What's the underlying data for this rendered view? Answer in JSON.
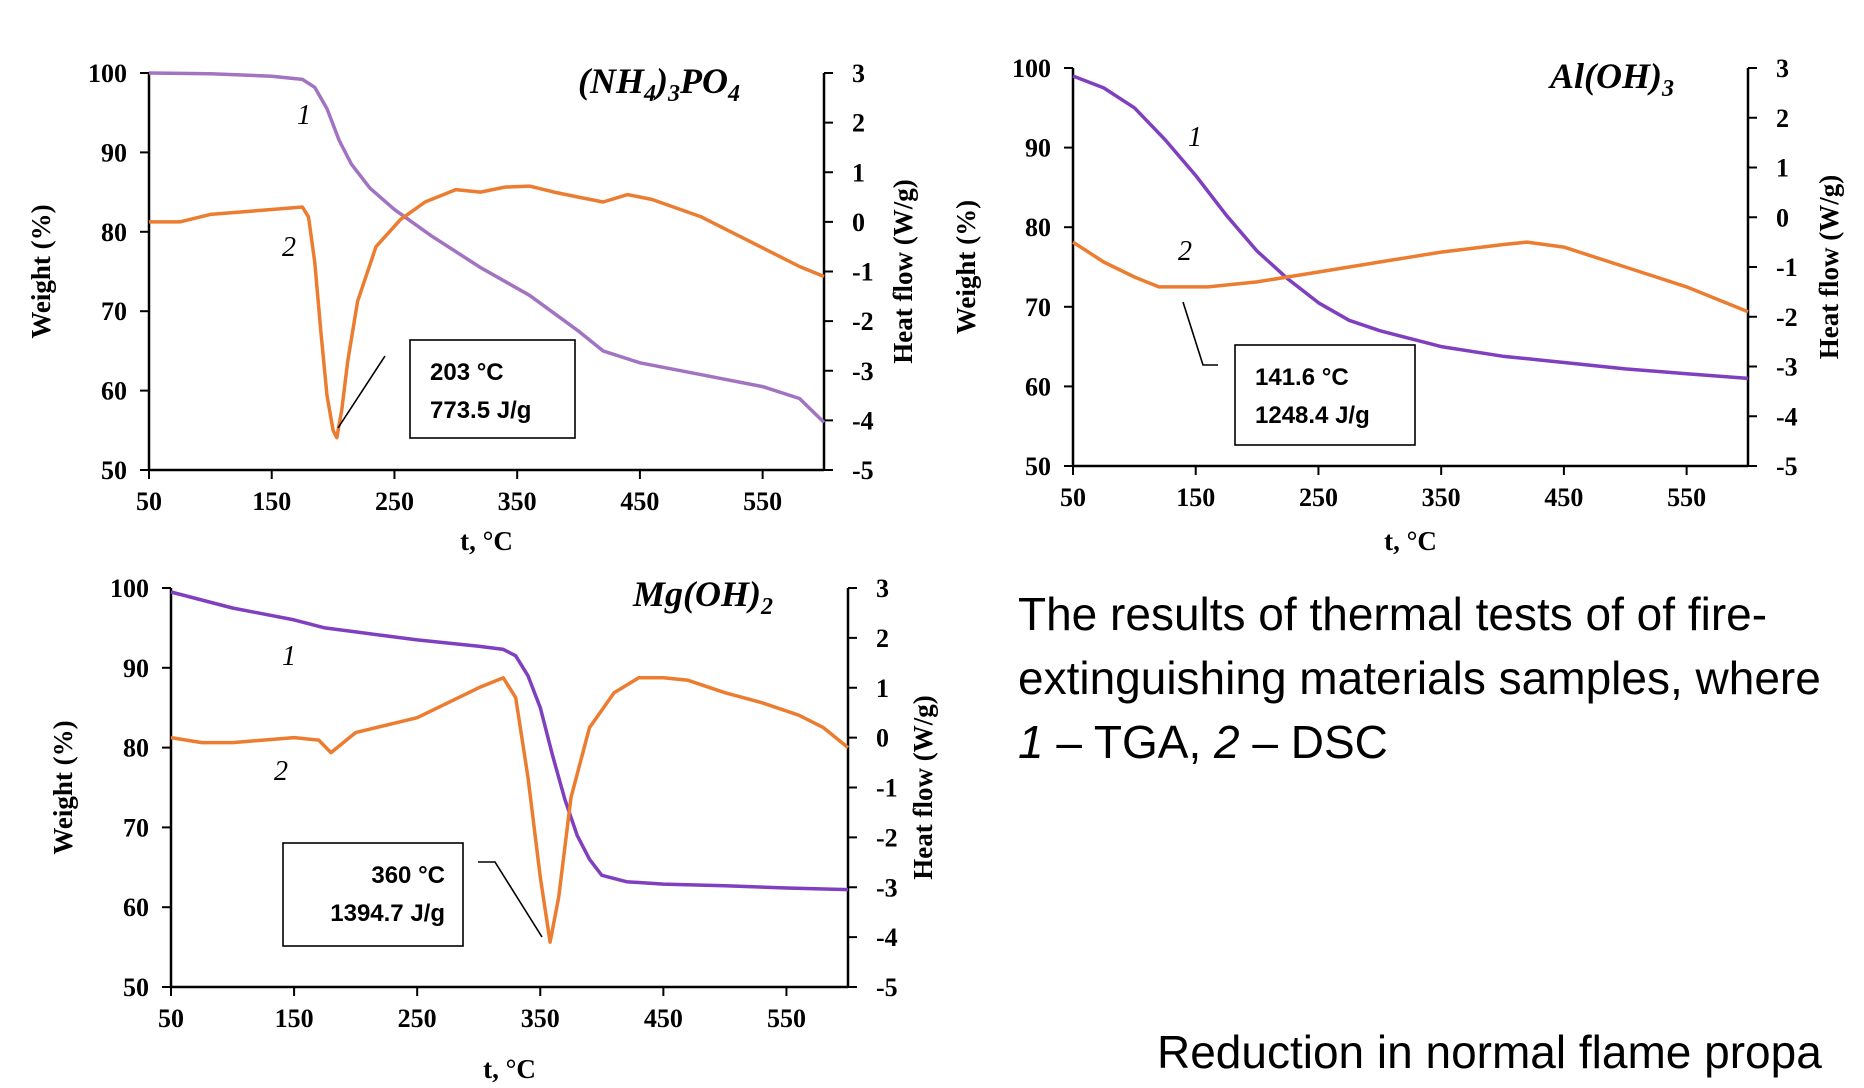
{
  "caption": {
    "line1": "The results of thermal tests of of fire-",
    "line2": "extinguishing materials samples, where",
    "l3_n1": "1",
    "l3_t1": " – TGA, ",
    "l3_n2": "2",
    "l3_t2": " – DSC"
  },
  "footer_text": "Reduction in normal flame propa",
  "colors": {
    "tga": "#7f3fbf",
    "tga_light": "#a173c1",
    "dsc": "#ec7c30"
  },
  "chart_data": [
    {
      "type": "line",
      "title_main": "(NH",
      "title_sub1": "4",
      "title_mid": ")",
      "title_sub2": "3",
      "title_end": "PO",
      "title_sub3": "4",
      "xlabel": "t, °C",
      "ylabel_left": "Weight (%)",
      "ylabel_right": "Heat flow (W/g)",
      "xlim": [
        50,
        600
      ],
      "ylim_left": [
        50,
        100
      ],
      "ylim_right": [
        -5,
        3
      ],
      "x_ticks": [
        "50",
        "150",
        "250",
        "350",
        "450",
        "550"
      ],
      "y_left_ticks": [
        "100",
        "90",
        "80",
        "70",
        "60",
        "50"
      ],
      "y_right_ticks": [
        "3",
        "2",
        "1",
        "0",
        "-1",
        "-2",
        "-3",
        "-4",
        "-5"
      ],
      "annotation": {
        "temp": "203 °C",
        "energy": "773.5 J/g"
      },
      "curve_labels": [
        "1",
        "2"
      ],
      "series": [
        {
          "name": "1",
          "axis": "left",
          "x": [
            50,
            100,
            150,
            175,
            185,
            195,
            205,
            215,
            230,
            250,
            280,
            320,
            360,
            400,
            420,
            450,
            500,
            550,
            580,
            600
          ],
          "y": [
            100,
            99.9,
            99.6,
            99.2,
            98.2,
            95.5,
            91.5,
            88.5,
            85.5,
            82.8,
            79.5,
            75.5,
            72,
            67.5,
            65,
            63.5,
            62,
            60.5,
            59,
            56
          ]
        },
        {
          "name": "2",
          "axis": "right",
          "x": [
            50,
            60,
            75,
            100,
            150,
            175,
            180,
            185,
            190,
            195,
            200,
            203,
            207,
            212,
            220,
            235,
            255,
            275,
            300,
            320,
            340,
            360,
            380,
            400,
            420,
            440,
            460,
            500,
            540,
            580,
            600
          ],
          "y": [
            0,
            0,
            0,
            0.15,
            0.25,
            0.3,
            0.1,
            -0.8,
            -2.2,
            -3.5,
            -4.2,
            -4.35,
            -3.8,
            -2.8,
            -1.6,
            -0.5,
            0.05,
            0.4,
            0.65,
            0.6,
            0.7,
            0.72,
            0.6,
            0.5,
            0.4,
            0.55,
            0.45,
            0.1,
            -0.4,
            -0.9,
            -1.1
          ]
        }
      ]
    },
    {
      "type": "line",
      "title_main": "Al(OH)",
      "title_sub1": "3",
      "xlabel": "t, °C",
      "ylabel_left": "Weight (%)",
      "ylabel_right": "Heat flow (W/g)",
      "xlim": [
        50,
        600
      ],
      "ylim_left": [
        50,
        100
      ],
      "ylim_right": [
        -5,
        3
      ],
      "x_ticks": [
        "50",
        "150",
        "250",
        "350",
        "450",
        "550"
      ],
      "y_left_ticks": [
        "100",
        "90",
        "80",
        "70",
        "60",
        "50"
      ],
      "y_right_ticks": [
        "3",
        "2",
        "1",
        "0",
        "-1",
        "-2",
        "-3",
        "-4",
        "-5"
      ],
      "annotation": {
        "temp": "141.6 °C",
        "energy": "1248.4 J/g"
      },
      "curve_labels": [
        "1",
        "2"
      ],
      "series": [
        {
          "name": "1",
          "axis": "left",
          "x": [
            50,
            75,
            100,
            125,
            150,
            175,
            200,
            225,
            250,
            275,
            300,
            350,
            400,
            450,
            500,
            550,
            600
          ],
          "y": [
            99,
            97.5,
            95,
            91,
            86.5,
            81.5,
            77,
            73.5,
            70.5,
            68.3,
            67,
            65,
            63.8,
            63,
            62.2,
            61.6,
            61
          ]
        },
        {
          "name": "2",
          "axis": "right",
          "x": [
            50,
            75,
            100,
            120,
            140,
            160,
            200,
            250,
            300,
            350,
            400,
            420,
            450,
            500,
            550,
            600
          ],
          "y": [
            -0.5,
            -0.9,
            -1.2,
            -1.4,
            -1.4,
            -1.4,
            -1.3,
            -1.1,
            -0.9,
            -0.7,
            -0.55,
            -0.5,
            -0.6,
            -1.0,
            -1.4,
            -1.9
          ]
        }
      ]
    },
    {
      "type": "line",
      "title_main": "Mg(OH)",
      "title_sub1": "2",
      "xlabel": "t, °C",
      "ylabel_left": "Weight (%)",
      "ylabel_right": "Heat flow (W/g)",
      "xlim": [
        50,
        600
      ],
      "ylim_left": [
        50,
        100
      ],
      "ylim_right": [
        -5,
        3
      ],
      "x_ticks": [
        "50",
        "150",
        "250",
        "350",
        "450",
        "550"
      ],
      "y_left_ticks": [
        "100",
        "90",
        "80",
        "70",
        "60",
        "50"
      ],
      "y_right_ticks": [
        "3",
        "2",
        "1",
        "0",
        "-1",
        "-2",
        "-3",
        "-4",
        "-5"
      ],
      "annotation": {
        "temp": "360 °C",
        "energy": "1394.7 J/g"
      },
      "curve_labels": [
        "1",
        "2"
      ],
      "series": [
        {
          "name": "1",
          "axis": "left",
          "x": [
            50,
            100,
            150,
            175,
            200,
            250,
            300,
            320,
            330,
            340,
            350,
            360,
            370,
            380,
            390,
            400,
            420,
            450,
            500,
            550,
            600
          ],
          "y": [
            99.5,
            97.5,
            96,
            95,
            94.5,
            93.5,
            92.7,
            92.3,
            91.5,
            89,
            85,
            79,
            73.5,
            69,
            66,
            64,
            63.2,
            62.9,
            62.7,
            62.4,
            62.2
          ]
        },
        {
          "name": "2",
          "axis": "right",
          "x": [
            50,
            75,
            100,
            150,
            170,
            180,
            200,
            250,
            300,
            320,
            330,
            340,
            350,
            358,
            365,
            375,
            390,
            410,
            430,
            450,
            470,
            500,
            530,
            560,
            580,
            600
          ],
          "y": [
            0,
            -0.1,
            -0.1,
            0,
            -0.05,
            -0.3,
            0.1,
            0.4,
            1.0,
            1.2,
            0.8,
            -0.8,
            -2.8,
            -4.1,
            -3.2,
            -1.2,
            0.2,
            0.9,
            1.2,
            1.2,
            1.15,
            0.9,
            0.7,
            0.45,
            0.2,
            -0.2
          ]
        }
      ]
    }
  ]
}
